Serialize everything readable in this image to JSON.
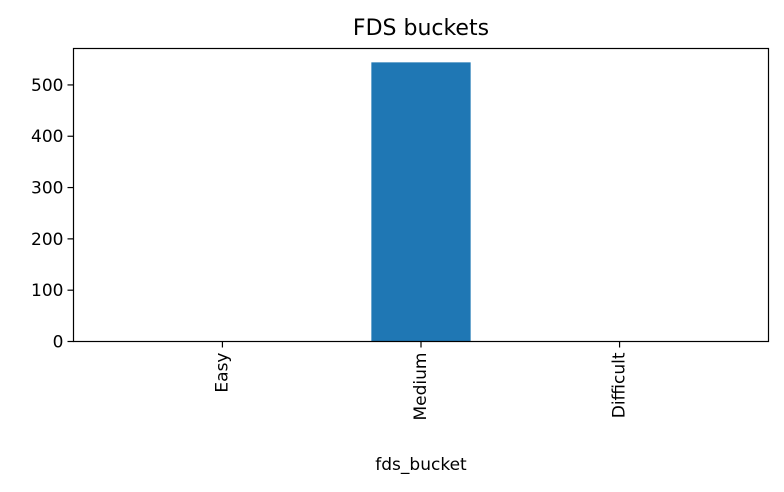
{
  "chart_data": {
    "type": "bar",
    "title": "FDS buckets",
    "xlabel": "fds_bucket",
    "ylabel": "",
    "categories": [
      "Easy",
      "Medium",
      "Difficult"
    ],
    "values": [
      0,
      544,
      0
    ],
    "ylim": [
      0,
      571
    ],
    "yticks": [
      0,
      100,
      200,
      300,
      400,
      500
    ],
    "bar_color": "#1f77b4",
    "grid": false,
    "legend": "none"
  }
}
